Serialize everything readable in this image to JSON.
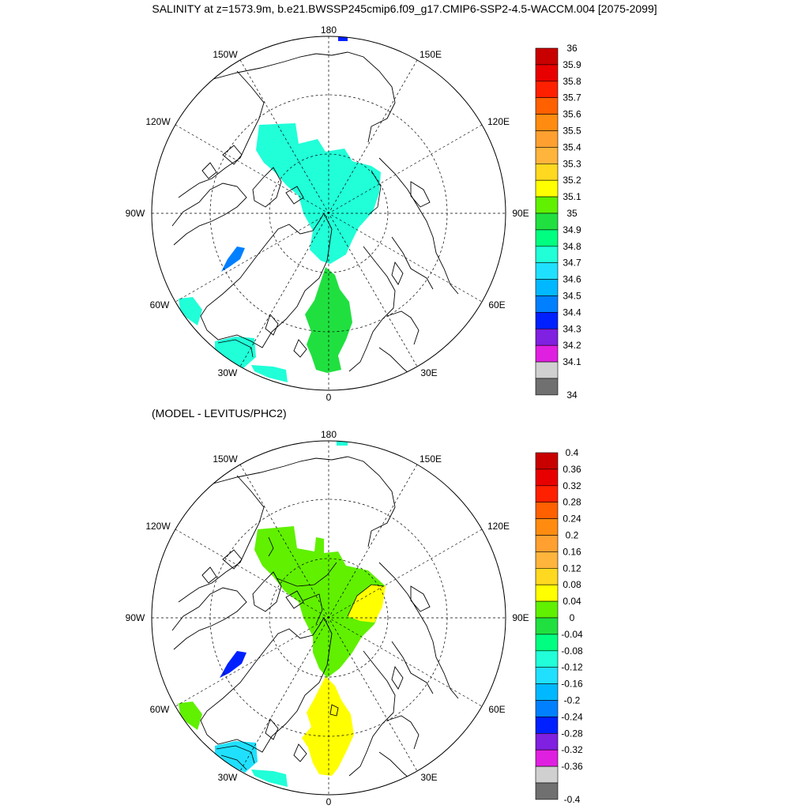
{
  "title": "SALINITY at z=1573.9m, b.e21.BWSSP245cmip6.f09_g17.CMIP6-SSP2-4.5-WACCM.004 [2075-2099]",
  "subtitle": "(MODEL - LEVITUS/PHC2)",
  "lon_labels": [
    "180",
    "150E",
    "120E",
    "90E",
    "60E",
    "30E",
    "0",
    "30W",
    "60W",
    "90W",
    "120W",
    "150W"
  ],
  "top_colorbar": {
    "labels": [
      "36",
      "35.9",
      "35.8",
      "35.7",
      "35.6",
      "35.5",
      "35.4",
      "35.3",
      "35.2",
      "35.1",
      "35",
      "34.9",
      "34.8",
      "34.7",
      "34.6",
      "34.5",
      "34.4",
      "34.3",
      "34.2",
      "34.1",
      "34"
    ],
    "colors": [
      "#c80000",
      "#e80000",
      "#ff2000",
      "#ff6000",
      "#ff8c10",
      "#ffa030",
      "#ffb43c",
      "#ffd820",
      "#ffff00",
      "#60f000",
      "#20e040",
      "#00ff80",
      "#20ffd8",
      "#20e0ff",
      "#00b8ff",
      "#0080ff",
      "#0020ff",
      "#8020e0",
      "#e020e0",
      "#d0d0d0",
      "#707070"
    ]
  },
  "bottom_colorbar": {
    "labels": [
      "0.4",
      "0.36",
      "0.32",
      "0.28",
      "0.24",
      "0.2",
      "0.16",
      "0.12",
      "0.08",
      "0.04",
      "0",
      "-0.04",
      "-0.08",
      "-0.12",
      "-0.16",
      "-0.2",
      "-0.24",
      "-0.28",
      "-0.32",
      "-0.36",
      "-0.4"
    ],
    "colors": [
      "#c80000",
      "#e80000",
      "#ff2000",
      "#ff6000",
      "#ff8c10",
      "#ffa030",
      "#ffb43c",
      "#ffd820",
      "#ffff00",
      "#60f000",
      "#20e040",
      "#00ff80",
      "#20ffd8",
      "#20e0ff",
      "#00b8ff",
      "#0080ff",
      "#0020ff",
      "#8020e0",
      "#e020e0",
      "#d0d0d0",
      "#707070"
    ]
  },
  "field_colors": {
    "top_arctic": "#20ffd8",
    "top_atlantic": "#20e040",
    "top_baffin": "#0080ff",
    "bottom_arctic": "#60f000",
    "bottom_yellow": "#ffff00",
    "bottom_baffin": "#0020ff",
    "bottom_labrador": "#60f000",
    "bottom_irminger": "#20e0ff"
  }
}
